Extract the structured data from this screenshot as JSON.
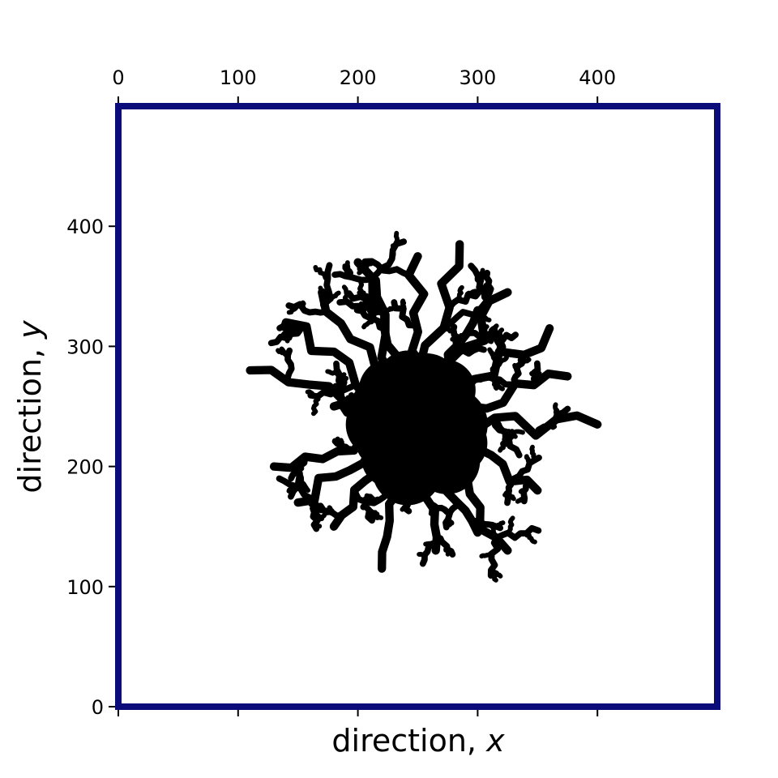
{
  "chart_data": {
    "type": "heatmap",
    "subtype": "diffusion-limited-aggregation cluster",
    "title": "",
    "xlabel_text": "direction, ",
    "xlabel_var": "x",
    "ylabel_text": "direction, ",
    "ylabel_var": "y",
    "xlim": [
      0,
      500
    ],
    "ylim": [
      0,
      500
    ],
    "x_ticks": [
      0,
      100,
      200,
      300,
      400
    ],
    "x_tick_labels": [
      "0",
      "100",
      "200",
      "300",
      "400"
    ],
    "x_ticks_position": "top",
    "y_ticks": [
      0,
      100,
      200,
      300,
      400
    ],
    "y_tick_labels": [
      "0",
      "100",
      "200",
      "300",
      "400"
    ],
    "grid": false,
    "legend": "none",
    "frame_color": "#0b0b7a",
    "cluster_color": "#000000",
    "background_color": "#ffffff",
    "cluster_center": [
      250,
      235
    ],
    "core_radius": 50,
    "arm_tips": [
      [
        285,
        385
      ],
      [
        250,
        375
      ],
      [
        200,
        370
      ],
      [
        140,
        320
      ],
      [
        110,
        280
      ],
      [
        130,
        200
      ],
      [
        150,
        170
      ],
      [
        180,
        150
      ],
      [
        220,
        115
      ],
      [
        265,
        130
      ],
      [
        300,
        145
      ],
      [
        325,
        130
      ],
      [
        350,
        180
      ],
      [
        400,
        235
      ],
      [
        375,
        275
      ],
      [
        360,
        315
      ],
      [
        325,
        345
      ],
      [
        300,
        330
      ],
      [
        170,
        345
      ],
      [
        180,
        250
      ],
      [
        215,
        355
      ]
    ]
  }
}
